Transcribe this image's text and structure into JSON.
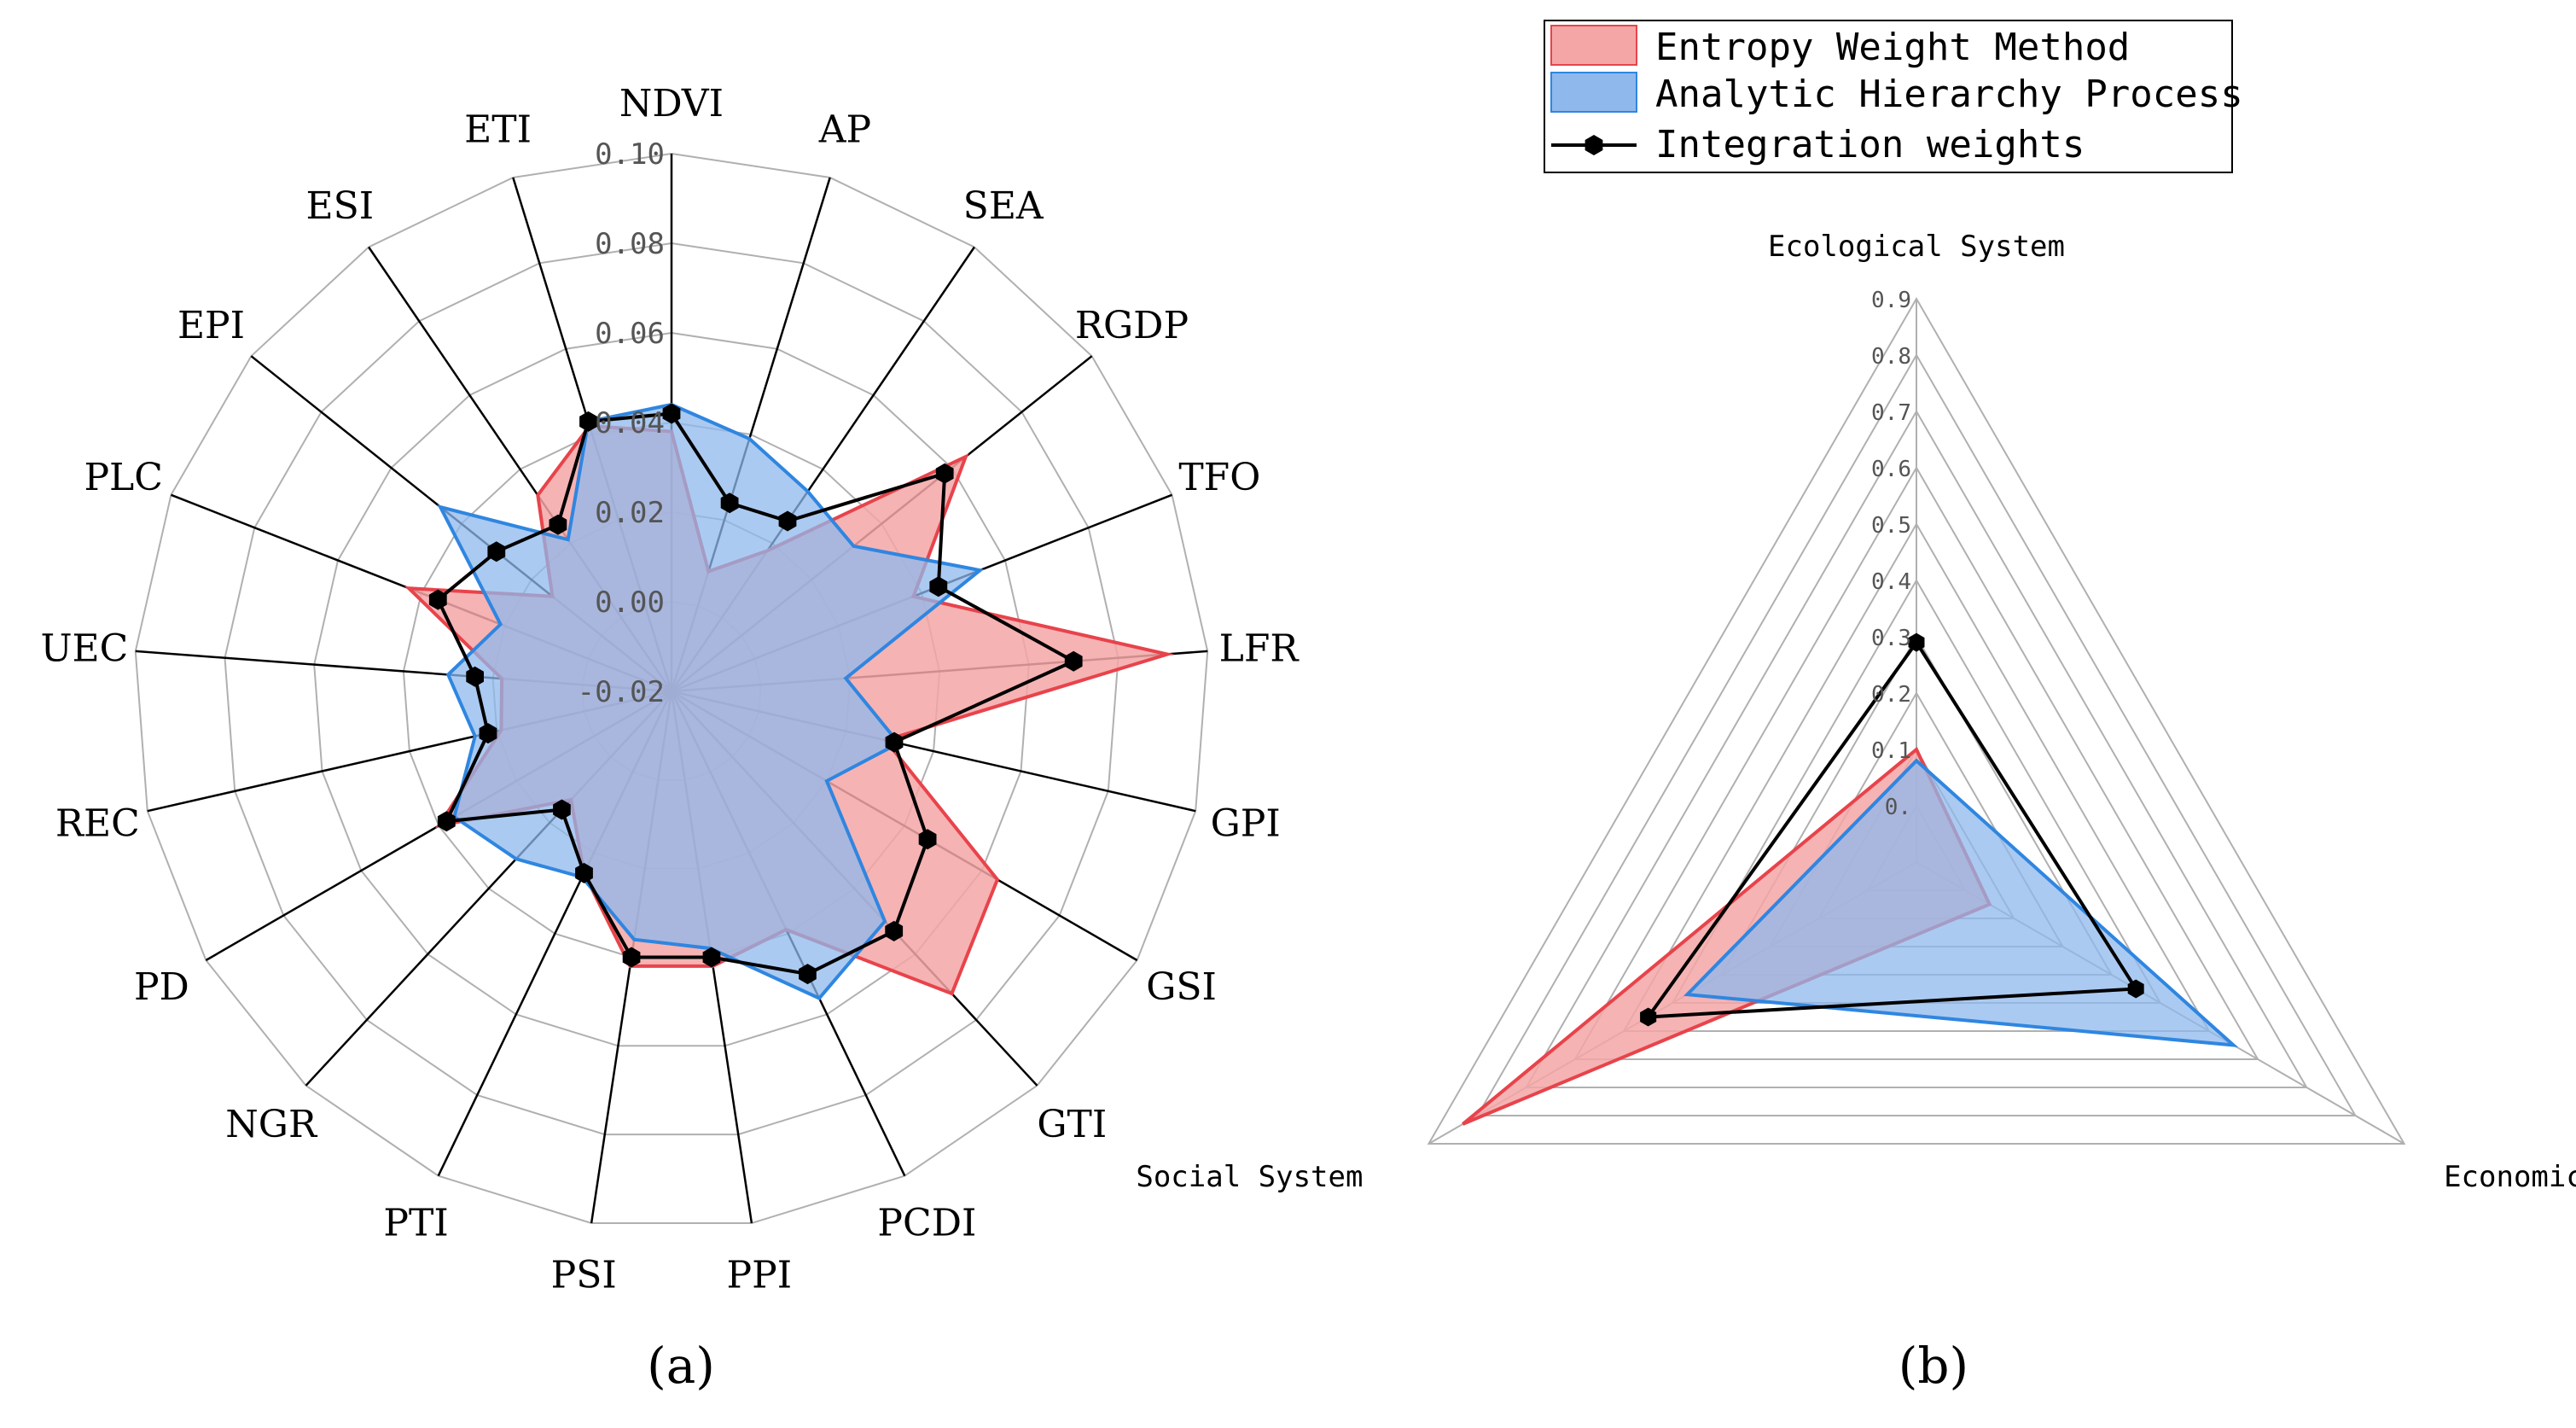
{
  "legend": {
    "entropy": "Entropy Weight Method",
    "ahp": "Analytic Hierarchy Process",
    "integration": "Integration weights"
  },
  "colors": {
    "entropy_fill": "#f4a6a6",
    "entropy_stroke": "#e8434b",
    "ahp_fill": "#8fb8ec",
    "ahp_stroke": "#2f86e0",
    "integration": "#000000",
    "grid": "#b0b0b0",
    "spoke": "#000000"
  },
  "panel_labels": {
    "a": "(a)",
    "b": "(b)"
  },
  "chart_data": [
    {
      "type": "radar",
      "panel": "(a)",
      "categories": [
        "NDVI",
        "AP",
        "SEA",
        "RGDP",
        "TFO",
        "LFR",
        "GPI",
        "GSI",
        "GTI",
        "PCDI",
        "PPI",
        "PSI",
        "PTI",
        "NGR",
        "PD",
        "REC",
        "UEC",
        "PLC",
        "EPI",
        "ESI",
        "ETI"
      ],
      "rlim": [
        -0.02,
        0.1
      ],
      "ticks": [
        -0.02,
        0.0,
        0.02,
        0.04,
        0.06,
        0.08,
        0.1
      ],
      "tick_labels": [
        "-0.02",
        "0.00",
        "0.02",
        "0.04",
        "0.06",
        "0.08",
        "0.10"
      ],
      "series": [
        {
          "name": "Entropy Weight Method",
          "values": [
            0.038,
            0.008,
            0.018,
            0.064,
            0.038,
            0.091,
            0.029,
            0.064,
            0.072,
            0.039,
            0.042,
            0.042,
            0.025,
            0.013,
            0.04,
            0.019,
            0.018,
            0.043,
            0.014,
            0.033,
            0.042
          ]
        },
        {
          "name": "Analytic Hierarchy Process",
          "values": [
            0.044,
            0.039,
            0.034,
            0.032,
            0.054,
            0.019,
            0.032,
            0.02,
            0.05,
            0.056,
            0.038,
            0.036,
            0.026,
            0.031,
            0.036,
            0.025,
            0.03,
            0.021,
            0.046,
            0.021,
            0.043
          ]
        },
        {
          "name": "Integration weights",
          "values": [
            0.042,
            0.024,
            0.026,
            0.058,
            0.044,
            0.07,
            0.031,
            0.046,
            0.053,
            0.05,
            0.04,
            0.04,
            0.025,
            0.016,
            0.038,
            0.022,
            0.024,
            0.036,
            0.03,
            0.025,
            0.043
          ]
        }
      ]
    },
    {
      "type": "radar",
      "panel": "(b)",
      "categories": [
        "Ecological System",
        "Economic System",
        "Social System"
      ],
      "rlim": [
        -0.1,
        0.9
      ],
      "ticks": [
        0.0,
        0.1,
        0.2,
        0.3,
        0.4,
        0.5,
        0.6,
        0.7,
        0.8,
        0.9
      ],
      "tick_labels": [
        "0.",
        "0.1",
        "0.2",
        "0.3",
        "0.4",
        "0.5",
        "0.6",
        "0.7",
        "0.8",
        "0.9"
      ],
      "series": [
        {
          "name": "Entropy Weight Method",
          "values": [
            0.1,
            0.05,
            0.83
          ]
        },
        {
          "name": "Analytic Hierarchy Process",
          "values": [
            0.08,
            0.55,
            0.37
          ]
        },
        {
          "name": "Integration weights",
          "values": [
            0.29,
            0.35,
            0.45
          ]
        }
      ]
    }
  ]
}
